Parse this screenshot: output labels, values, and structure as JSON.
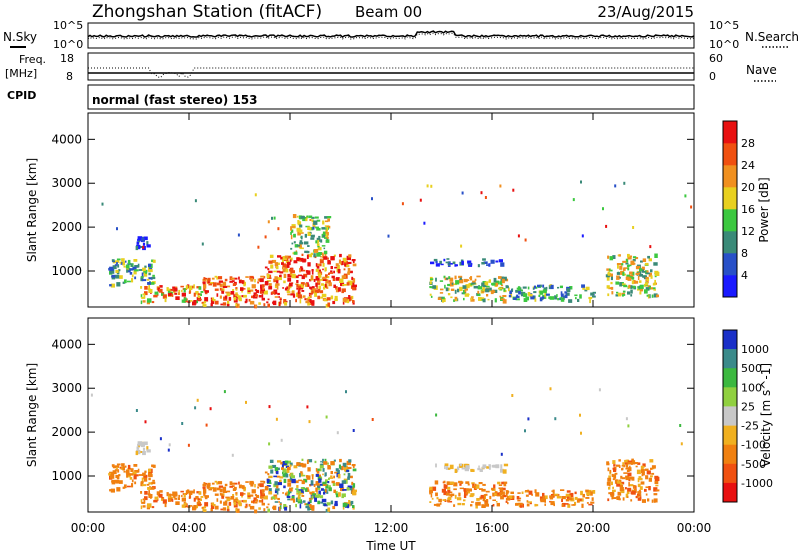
{
  "header": {
    "station": "Zhongshan Station (fitACF)",
    "beam": "Beam 00",
    "date": "23/Aug/2015"
  },
  "top_panel": {
    "left_label": "N.Sky",
    "right_label": "N.Search",
    "left_ticks": [
      "10^5",
      "10^0"
    ],
    "right_ticks": [
      "10^5",
      "10^0"
    ]
  },
  "freq_panel": {
    "left_label_1": "Freq.",
    "left_label_2": "[MHz]",
    "right_label": "Nave",
    "left_ticks": [
      "18",
      "8"
    ],
    "right_ticks": [
      "60",
      "0"
    ]
  },
  "cpid": {
    "label": "CPID",
    "value": "normal (fast stereo) 153"
  },
  "time_axis": {
    "label": "Time UT",
    "ticks": [
      "00:00",
      "04:00",
      "08:00",
      "12:00",
      "16:00",
      "20:00",
      "00:00"
    ]
  },
  "chart_data": [
    {
      "type": "heatmap",
      "name": "power",
      "ylabel": "Slant Range [km]",
      "yticks": [
        "1000",
        "2000",
        "3000",
        "4000"
      ],
      "ylim": [
        180,
        4600
      ],
      "xlim_hours": [
        0,
        24
      ],
      "colorbar_label": "Power [dB]",
      "colorbar_ticks": [
        "4",
        "8",
        "12",
        "16",
        "20",
        "24",
        "28"
      ],
      "colors": [
        "#1a1aff",
        "#2850c8",
        "#3a8a78",
        "#3cc840",
        "#e8d020",
        "#f09020",
        "#f05010",
        "#e81010"
      ],
      "echo_regions": [
        {
          "t": [
            0.8,
            2.6
          ],
          "r": [
            700,
            1300
          ],
          "level": "weak-mid"
        },
        {
          "t": [
            1.8,
            2.5
          ],
          "r": [
            1550,
            1800
          ],
          "level": "weak"
        },
        {
          "t": [
            2.0,
            4.5
          ],
          "r": [
            300,
            700
          ],
          "level": "mid-strong"
        },
        {
          "t": [
            4.5,
            7.0
          ],
          "r": [
            200,
            900
          ],
          "level": "strong"
        },
        {
          "t": [
            7.0,
            10.5
          ],
          "r": [
            250,
            1400
          ],
          "level": "strong"
        },
        {
          "t": [
            8.0,
            9.5
          ],
          "r": [
            1400,
            2300
          ],
          "level": "mid"
        },
        {
          "t": [
            13.5,
            16.5
          ],
          "r": [
            350,
            900
          ],
          "level": "mid"
        },
        {
          "t": [
            13.5,
            16.5
          ],
          "r": [
            1150,
            1300
          ],
          "level": "weak"
        },
        {
          "t": [
            16.5,
            20.0
          ],
          "r": [
            350,
            700
          ],
          "level": "weak-mid"
        },
        {
          "t": [
            20.5,
            22.5
          ],
          "r": [
            450,
            1400
          ],
          "level": "mid"
        }
      ]
    },
    {
      "type": "heatmap",
      "name": "velocity",
      "ylabel": "Slant Range [km]",
      "yticks": [
        "1000",
        "2000",
        "3000",
        "4000"
      ],
      "ylim": [
        180,
        4600
      ],
      "xlim_hours": [
        0,
        24
      ],
      "colorbar_label": "Velocity [m s^-1]",
      "colorbar_ticks": [
        "1000",
        "500",
        "100",
        "25",
        "-25",
        "-100",
        "-500",
        "-1000"
      ],
      "colors": [
        "#1a30c8",
        "#3a8a8a",
        "#3cb840",
        "#90d040",
        "#c8c8c8",
        "#f0b020",
        "#f08010",
        "#f05010",
        "#e81010"
      ],
      "echo_regions": [
        {
          "t": [
            0.8,
            2.6
          ],
          "r": [
            700,
            1300
          ],
          "level": "negative"
        },
        {
          "t": [
            1.8,
            2.5
          ],
          "r": [
            1550,
            1800
          ],
          "level": "near-zero"
        },
        {
          "t": [
            2.0,
            4.5
          ],
          "r": [
            300,
            700
          ],
          "level": "negative"
        },
        {
          "t": [
            4.5,
            7.0
          ],
          "r": [
            200,
            900
          ],
          "level": "negative"
        },
        {
          "t": [
            7.0,
            10.5
          ],
          "r": [
            250,
            1400
          ],
          "level": "mixed"
        },
        {
          "t": [
            13.5,
            16.5
          ],
          "r": [
            350,
            900
          ],
          "level": "negative"
        },
        {
          "t": [
            13.5,
            16.5
          ],
          "r": [
            1150,
            1300
          ],
          "level": "near-zero"
        },
        {
          "t": [
            16.5,
            20.0
          ],
          "r": [
            350,
            700
          ],
          "level": "negative"
        },
        {
          "t": [
            20.5,
            22.5
          ],
          "r": [
            450,
            1400
          ],
          "level": "negative"
        }
      ]
    }
  ]
}
